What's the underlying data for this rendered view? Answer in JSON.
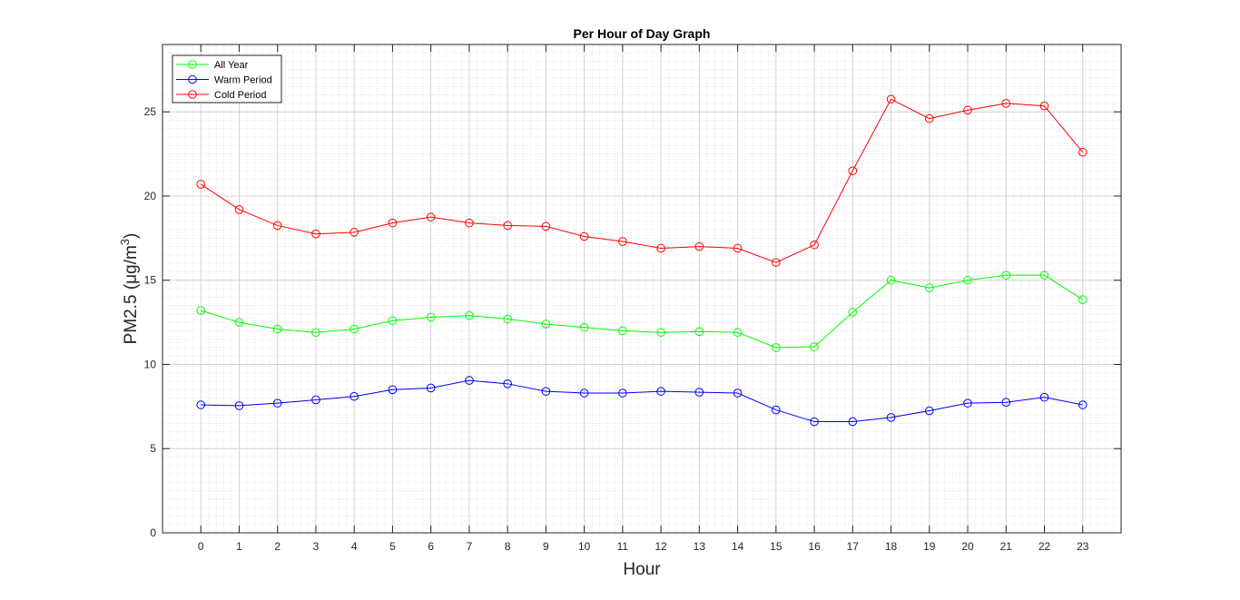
{
  "chart_data": {
    "type": "line",
    "title": "Per Hour of Day Graph",
    "xlabel": "Hour",
    "ylabel": {
      "main": "PM2.5 (μg/m",
      "superscript": "3",
      "suffix": ")"
    },
    "x": [
      0,
      1,
      2,
      3,
      4,
      5,
      6,
      7,
      8,
      9,
      10,
      11,
      12,
      13,
      14,
      15,
      16,
      17,
      18,
      19,
      20,
      21,
      22,
      23
    ],
    "x_tick_labels": [
      "0",
      "1",
      "2",
      "3",
      "4",
      "5",
      "6",
      "7",
      "8",
      "9",
      "10",
      "11",
      "12",
      "13",
      "14",
      "15",
      "16",
      "17",
      "18",
      "19",
      "20",
      "21",
      "22",
      "23"
    ],
    "xlim": [
      -1,
      24
    ],
    "ylim": [
      0,
      29
    ],
    "y_ticks": [
      0,
      5,
      10,
      15,
      20,
      25
    ],
    "y_tick_labels": [
      "0",
      "5",
      "10",
      "15",
      "20",
      "25"
    ],
    "grid": true,
    "minor_grid": true,
    "legend_position": "top-left",
    "marker": "circle",
    "series": [
      {
        "name": "All Year",
        "color": "#00ff00",
        "values": [
          13.2,
          12.5,
          12.1,
          11.9,
          12.1,
          12.6,
          12.8,
          12.9,
          12.7,
          12.4,
          12.2,
          12.0,
          11.9,
          11.95,
          11.9,
          11.0,
          11.05,
          13.1,
          15.0,
          14.55,
          15.0,
          15.3,
          15.3,
          13.85
        ]
      },
      {
        "name": "Warm Period",
        "color": "#0000ff",
        "values": [
          7.6,
          7.55,
          7.7,
          7.9,
          8.1,
          8.5,
          8.6,
          9.05,
          8.85,
          8.4,
          8.3,
          8.3,
          8.4,
          8.35,
          8.3,
          7.3,
          6.6,
          6.6,
          6.85,
          7.25,
          7.7,
          7.75,
          8.05,
          7.6
        ]
      },
      {
        "name": "Cold Period",
        "color": "#ff0000",
        "values": [
          20.7,
          19.2,
          18.25,
          17.75,
          17.85,
          18.4,
          18.75,
          18.4,
          18.25,
          18.2,
          17.6,
          17.3,
          16.9,
          17.0,
          16.9,
          16.05,
          17.1,
          21.5,
          25.75,
          24.6,
          25.1,
          25.5,
          25.35,
          22.6
        ]
      }
    ]
  }
}
